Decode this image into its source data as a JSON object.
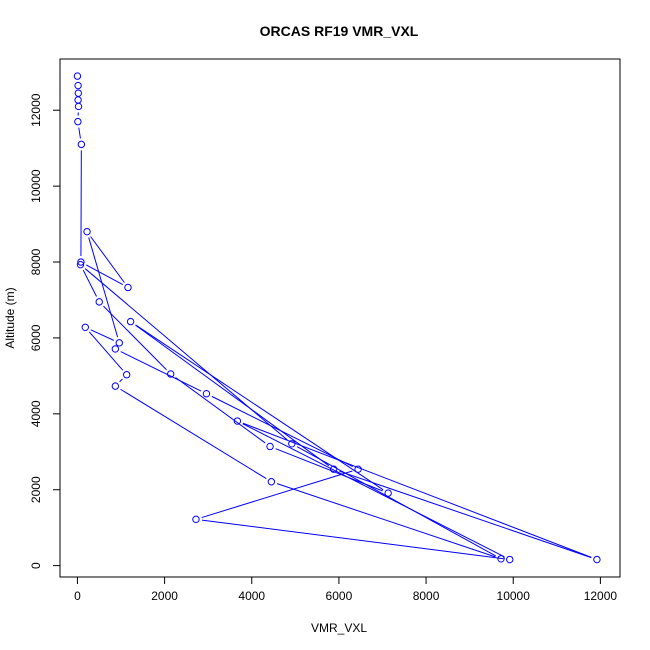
{
  "chart_data": {
    "type": "line",
    "title": "ORCAS RF19 VMR_VXL",
    "xlabel": "VMR_VXL",
    "ylabel": "Altitude (m)",
    "xlim": [
      -400,
      12450
    ],
    "ylim": [
      -300,
      13350
    ],
    "xticks": [
      0,
      2000,
      4000,
      6000,
      8000,
      10000,
      12000
    ],
    "yticks": [
      0,
      2000,
      4000,
      6000,
      8000,
      10000,
      12000
    ],
    "grid": false,
    "legend": "none",
    "series": [
      {
        "color": "#0000ff",
        "marker": "open-circle",
        "points": [
          [
            0,
            12900
          ],
          [
            15,
            12650
          ],
          [
            20,
            12450
          ],
          [
            15,
            12270
          ],
          [
            25,
            12100
          ],
          [
            10,
            11700
          ],
          [
            90,
            11100
          ],
          [
            80,
            8000
          ],
          [
            1160,
            7330
          ],
          [
            220,
            8800
          ],
          [
            960,
            5870
          ],
          [
            180,
            6280
          ],
          [
            1130,
            5030
          ],
          [
            870,
            4730
          ],
          [
            4450,
            2210
          ],
          [
            9720,
            180
          ],
          [
            4920,
            3210
          ],
          [
            70,
            7930
          ],
          [
            500,
            6950
          ],
          [
            2140,
            5050
          ],
          [
            4420,
            3140
          ],
          [
            7130,
            1910
          ],
          [
            1220,
            6430
          ],
          [
            5880,
            2540
          ],
          [
            11920,
            160
          ],
          [
            3670,
            3810
          ],
          [
            9920,
            160
          ],
          [
            2720,
            1220
          ],
          [
            6440,
            2540
          ],
          [
            2960,
            4530
          ],
          [
            870,
            5710
          ]
        ]
      }
    ]
  }
}
